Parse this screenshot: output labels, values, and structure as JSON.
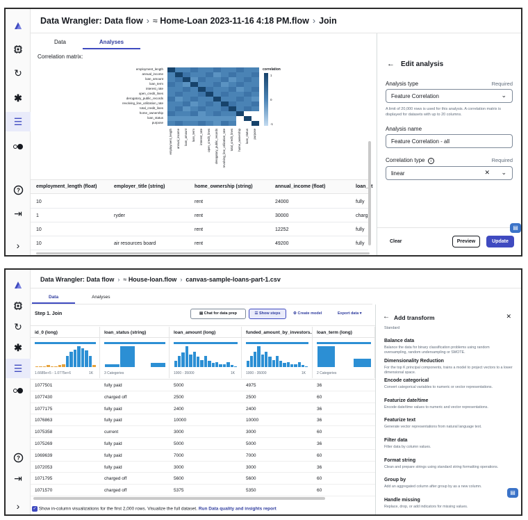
{
  "top": {
    "breadcrumb": {
      "app": "Data Wrangler: Data flow",
      "flow": "Home-Loan 2023-11-16 4:18 PM.flow",
      "node": "Join"
    },
    "tabs": [
      "Data",
      "Analyses"
    ],
    "correlation_title": "Correlation matrix:",
    "heatmap": {
      "legend_title": "correlation",
      "legend_ticks": [
        "1",
        "0",
        "-1"
      ],
      "row_labels": [
        "employment_length",
        "annual_income",
        "loan_amount",
        "loan_term",
        "interest_rate",
        "open_credit_lines",
        "derogatory_public_records",
        "revolving_line_utilization_rate",
        "total_credit_lines",
        "home_ownership",
        "loan_status",
        "purpose"
      ],
      "col_labels": [
        "employment_length",
        "annual_income",
        "loan_amount",
        "loan_term",
        "interest_rate",
        "open_credit_lines",
        "derogatory_public_records",
        "revolving_line_utilization_rate",
        "total_credit_lines",
        "home_ownership",
        "loan_status",
        "purpose"
      ]
    },
    "table": {
      "headers": [
        "employment_length (float)",
        "employer_title (string)",
        "home_ownership (string)",
        "annual_income (float)",
        "loan_st"
      ],
      "rows": [
        [
          "10",
          "",
          "rent",
          "24000",
          "fully"
        ],
        [
          "1",
          "ryder",
          "rent",
          "30000",
          "charg"
        ],
        [
          "10",
          "",
          "rent",
          "12252",
          "fully"
        ],
        [
          "10",
          "air resources board",
          "rent",
          "49200",
          "fully"
        ]
      ]
    },
    "panel": {
      "title": "Edit analysis",
      "analysis_type_label": "Analysis type",
      "required": "Required",
      "analysis_type_value": "Feature Correlation",
      "help": "A limit of 20,000 rows is used for this analysis. A correlation matrix is displayed for datasets with up to 20 columns.",
      "name_label": "Analysis name",
      "name_value": "Feature Correlation - all",
      "corr_type_label": "Correlation type",
      "corr_type_value": "linear",
      "clear": "Clear",
      "preview": "Preview",
      "update": "Update"
    }
  },
  "bottom": {
    "breadcrumb": {
      "app": "Data Wrangler: Data flow",
      "flow": "House-loan.flow",
      "node": "canvas-sample-loans-part-1.csv"
    },
    "tabs": [
      "Data",
      "Analyses"
    ],
    "step": "Step 1. Join",
    "chat_btn": "Chat for data prep",
    "show_steps": "Show steps",
    "create_model": "Create model",
    "export": "Export data",
    "columns": [
      {
        "header": "id_0 (long)",
        "range": "1.6685e+5 - 1.0775e+6",
        "count": "1K",
        "bars": [
          0.05,
          0.05,
          0.05,
          0.1,
          0.05,
          0.05,
          0.1,
          0.15,
          0.55,
          0.75,
          0.85,
          1.0,
          0.9,
          0.8,
          0.55,
          0.1
        ]
      },
      {
        "header": "loan_status (string)",
        "range": "3 Categories",
        "count": "",
        "bars": [
          0.15,
          1.0,
          0.0,
          0.2
        ]
      },
      {
        "header": "loan_amount (long)",
        "range": "1000 - 35000",
        "count": "1K",
        "bars": [
          0.3,
          0.55,
          0.7,
          1.0,
          0.6,
          0.75,
          0.5,
          0.35,
          0.55,
          0.3,
          0.2,
          0.25,
          0.15,
          0.15,
          0.25,
          0.1,
          0.05
        ]
      },
      {
        "header": "funded_amount_by_investors...",
        "range": "1000 - 35000",
        "count": "1K",
        "bars": [
          0.3,
          0.55,
          0.75,
          1.0,
          0.6,
          0.75,
          0.5,
          0.35,
          0.55,
          0.3,
          0.2,
          0.25,
          0.15,
          0.12,
          0.22,
          0.1,
          0.05
        ]
      },
      {
        "header": "loan_term (long)",
        "range": "2 Categories",
        "count": "",
        "bars": [
          1.0,
          0.0,
          0.4
        ]
      }
    ],
    "rows": [
      [
        "1077501",
        "fully paid",
        "5000",
        "4975",
        "36"
      ],
      [
        "1077430",
        "charged off",
        "2500",
        "2500",
        "60"
      ],
      [
        "1077175",
        "fully paid",
        "2400",
        "2400",
        "36"
      ],
      [
        "1076863",
        "fully paid",
        "10000",
        "10000",
        "36"
      ],
      [
        "1075358",
        "current",
        "3000",
        "3000",
        "60"
      ],
      [
        "1075269",
        "fully paid",
        "5000",
        "5000",
        "36"
      ],
      [
        "1069639",
        "fully paid",
        "7000",
        "7000",
        "60"
      ],
      [
        "1072053",
        "fully paid",
        "3000",
        "3000",
        "36"
      ],
      [
        "1071795",
        "charged off",
        "5600",
        "5600",
        "60"
      ],
      [
        "1071570",
        "charged off",
        "5375",
        "5350",
        "60"
      ]
    ],
    "footer": {
      "text": "Show in-column visualizations for the first 2,000 rows. Visualize the full dataset.",
      "link": "Run Data quality and insights report"
    },
    "panel": {
      "title": "Add transform",
      "section": "Standard",
      "items": [
        {
          "title": "Balance data",
          "desc": "Balance the data for binary classification problems using random oversampling, random undersampling or SMOTE."
        },
        {
          "title": "Dimensionality Reduction",
          "desc": "For the top K principal components, trains a model to project vectors to a lower dimensional space."
        },
        {
          "title": "Encode categorical",
          "desc": "Convert categorical variables to numeric or vector representations."
        },
        {
          "title": "Featurize date/time",
          "desc": "Encode date/time values to numeric and vector representations."
        },
        {
          "title": "Featurize text",
          "desc": "Generate vector representations from natural language text."
        },
        {
          "title": "Filter data",
          "desc": "Filter data by column values."
        },
        {
          "title": "Format string",
          "desc": "Clean and prepare strings using standard string formatting operations."
        },
        {
          "title": "Group by",
          "desc": "Add an aggregated column after group by as a new column."
        },
        {
          "title": "Handle missing",
          "desc": "Replace, drop, or add indicators for missing values."
        }
      ]
    }
  },
  "colors": {
    "accent": "#3f4ac0",
    "bar": "#2c8fd4",
    "heat_dark": "#17436b",
    "heat_mid": "#4a83b5",
    "heat_light": "#c3dbf0"
  }
}
